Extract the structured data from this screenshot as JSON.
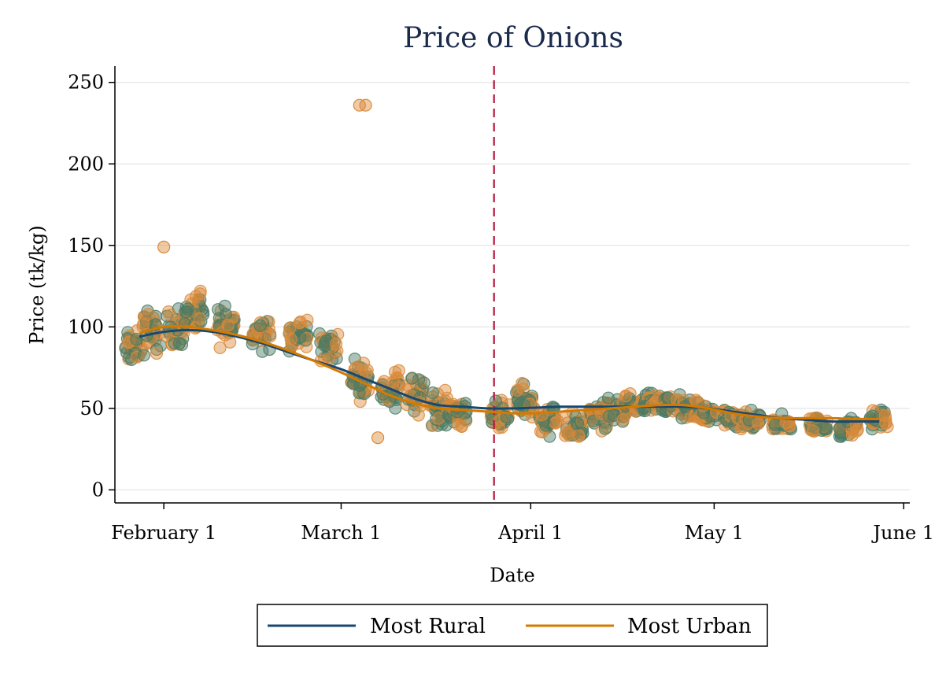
{
  "chart_data": {
    "type": "scatter",
    "title": "Price of Onions",
    "xlabel": "Date",
    "ylabel": "Price (tk/kg)",
    "x_ticks": [
      "February 1",
      "March 1",
      "April 1",
      "May 1",
      "June 1"
    ],
    "y_ticks": [
      0,
      50,
      100,
      150,
      200,
      250
    ],
    "ylim": [
      -8,
      260
    ],
    "xlim": [
      "2020-01-24",
      "2020-06-02"
    ],
    "grid": "horizontal",
    "legend_position": "bottom",
    "reference_line": {
      "x": "2020-03-26",
      "style": "dashed",
      "color": "#b4173c"
    },
    "colors": {
      "rural": "#1a476f",
      "urban": "#d47a00",
      "rural_points": "#4a7a64",
      "urban_points": "#d98a3a",
      "title": "#1a2a4a"
    },
    "series": [
      {
        "name": "Most Rural",
        "kind": "smoothed_line",
        "x": [
          "2020-01-28",
          "2020-02-01",
          "2020-02-05",
          "2020-02-09",
          "2020-02-13",
          "2020-02-17",
          "2020-02-21",
          "2020-02-25",
          "2020-03-01",
          "2020-03-05",
          "2020-03-09",
          "2020-03-13",
          "2020-03-17",
          "2020-03-21",
          "2020-03-25",
          "2020-03-29",
          "2020-04-02",
          "2020-04-06",
          "2020-04-10",
          "2020-04-14",
          "2020-04-18",
          "2020-04-22",
          "2020-04-26",
          "2020-04-30",
          "2020-05-04",
          "2020-05-08",
          "2020-05-12",
          "2020-05-16",
          "2020-05-20",
          "2020-05-24",
          "2020-05-28"
        ],
        "values": [
          94,
          97,
          98,
          97,
          94,
          90,
          85,
          80,
          74,
          68,
          62,
          56,
          52,
          51,
          50,
          50,
          50.5,
          51,
          51,
          51,
          51,
          51,
          51,
          50,
          48,
          46,
          44,
          43,
          42,
          42,
          42
        ]
      },
      {
        "name": "Most Urban",
        "kind": "smoothed_line",
        "x": [
          "2020-01-28",
          "2020-02-01",
          "2020-02-05",
          "2020-02-09",
          "2020-02-13",
          "2020-02-17",
          "2020-02-21",
          "2020-02-25",
          "2020-03-01",
          "2020-03-05",
          "2020-03-09",
          "2020-03-13",
          "2020-03-17",
          "2020-03-21",
          "2020-03-25",
          "2020-03-29",
          "2020-04-02",
          "2020-04-06",
          "2020-04-10",
          "2020-04-14",
          "2020-04-18",
          "2020-04-22",
          "2020-04-26",
          "2020-04-30",
          "2020-05-04",
          "2020-05-08",
          "2020-05-12",
          "2020-05-16",
          "2020-05-20",
          "2020-05-24",
          "2020-05-28"
        ],
        "values": [
          96,
          100,
          100,
          98,
          95,
          91,
          86,
          80,
          72,
          65,
          58,
          53,
          50,
          49,
          48,
          47,
          47,
          48,
          49,
          50,
          51,
          52,
          52,
          50,
          47,
          45,
          44,
          44,
          44,
          43.5,
          43.5
        ]
      }
    ],
    "scatter_clusters": {
      "x": [
        "2020-01-27",
        "2020-01-30",
        "2020-02-03",
        "2020-02-06",
        "2020-02-11",
        "2020-02-17",
        "2020-02-23",
        "2020-02-28",
        "2020-03-04",
        "2020-03-09",
        "2020-03-13",
        "2020-03-17",
        "2020-03-20",
        "2020-03-27",
        "2020-03-31",
        "2020-04-04",
        "2020-04-08",
        "2020-04-12",
        "2020-04-15",
        "2020-04-18",
        "2020-04-21",
        "2020-04-24",
        "2020-04-27",
        "2020-04-30",
        "2020-05-04",
        "2020-05-07",
        "2020-05-12",
        "2020-05-18",
        "2020-05-23",
        "2020-05-28"
      ],
      "center": [
        87,
        97,
        100,
        110,
        100,
        97,
        95,
        88,
        68,
        63,
        58,
        50,
        48,
        45,
        55,
        42,
        38,
        44,
        48,
        52,
        53,
        52,
        50,
        46,
        44,
        42,
        40,
        40,
        38,
        43
      ],
      "spread": [
        9,
        12,
        10,
        12,
        10,
        9,
        9,
        9,
        10,
        10,
        10,
        9,
        8,
        8,
        9,
        8,
        7,
        8,
        7,
        6,
        6,
        6,
        6,
        5,
        5,
        5,
        5,
        5,
        5,
        5
      ]
    },
    "outliers": [
      {
        "x": "2020-03-04",
        "y": 236
      },
      {
        "x": "2020-03-05",
        "y": 236
      },
      {
        "x": "2020-02-01",
        "y": 149
      },
      {
        "x": "2020-03-07",
        "y": 32
      }
    ]
  },
  "legend": {
    "items": [
      {
        "label": "Most Rural",
        "color": "#1a476f"
      },
      {
        "label": "Most Urban",
        "color": "#d47a00"
      }
    ]
  }
}
